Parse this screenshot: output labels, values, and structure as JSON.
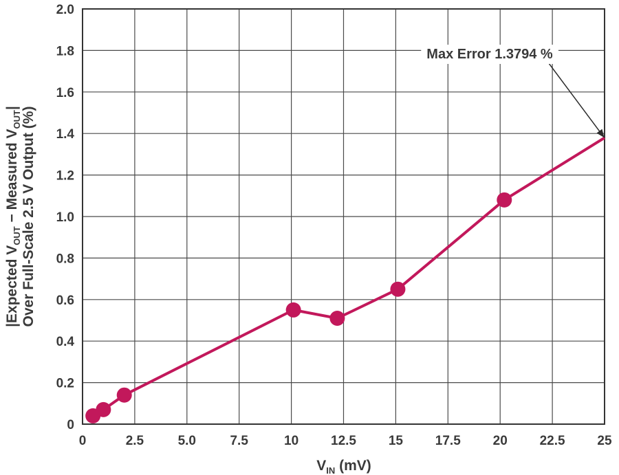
{
  "chart_data": {
    "type": "line",
    "x": [
      0.5,
      1.0,
      2.0,
      10.1,
      12.2,
      15.1,
      20.2,
      25.0
    ],
    "series": [
      {
        "values": [
          0.04,
          0.07,
          0.14,
          0.55,
          0.51,
          0.65,
          1.08,
          1.3794
        ],
        "markers": [
          true,
          true,
          true,
          true,
          true,
          true,
          true,
          false
        ]
      }
    ],
    "xlim": [
      0,
      25
    ],
    "ylim": [
      0,
      2.0
    ],
    "x_ticks": [
      "0",
      "2.5",
      "5.0",
      "7.5",
      "10",
      "12.5",
      "15",
      "17.5",
      "20",
      "22.5",
      "25"
    ],
    "x_tick_values": [
      0,
      2.5,
      5,
      7.5,
      10,
      12.5,
      15,
      17.5,
      20,
      22.5,
      25
    ],
    "y_ticks": [
      "0",
      "0.2",
      "0.4",
      "0.6",
      "0.8",
      "1.0",
      "1.2",
      "1.4",
      "1.6",
      "1.8",
      "2.0"
    ],
    "y_tick_values": [
      0,
      0.2,
      0.4,
      0.6,
      0.8,
      1.0,
      1.2,
      1.4,
      1.6,
      1.8,
      2.0
    ],
    "xlabel": {
      "main": "V",
      "sub": "IN",
      "rest": " (mV)"
    },
    "ylabel_line1": {
      "p1": "|Expected V",
      "s1": "OUT",
      "p2": " − Measured V",
      "s2": "OUT",
      "p3": "|"
    },
    "ylabel_line2": "Over Full-Scale 2.5 V Output (%)",
    "annotation": {
      "text": "Max Error 1.3794 %",
      "x": 25,
      "y": 1.3794
    },
    "grid": true,
    "legend": "none",
    "colors": {
      "line": "#c2185b",
      "grid": "#4a4a4a",
      "text": "#3a3a3a",
      "arrow": "#2b2b2b"
    }
  }
}
